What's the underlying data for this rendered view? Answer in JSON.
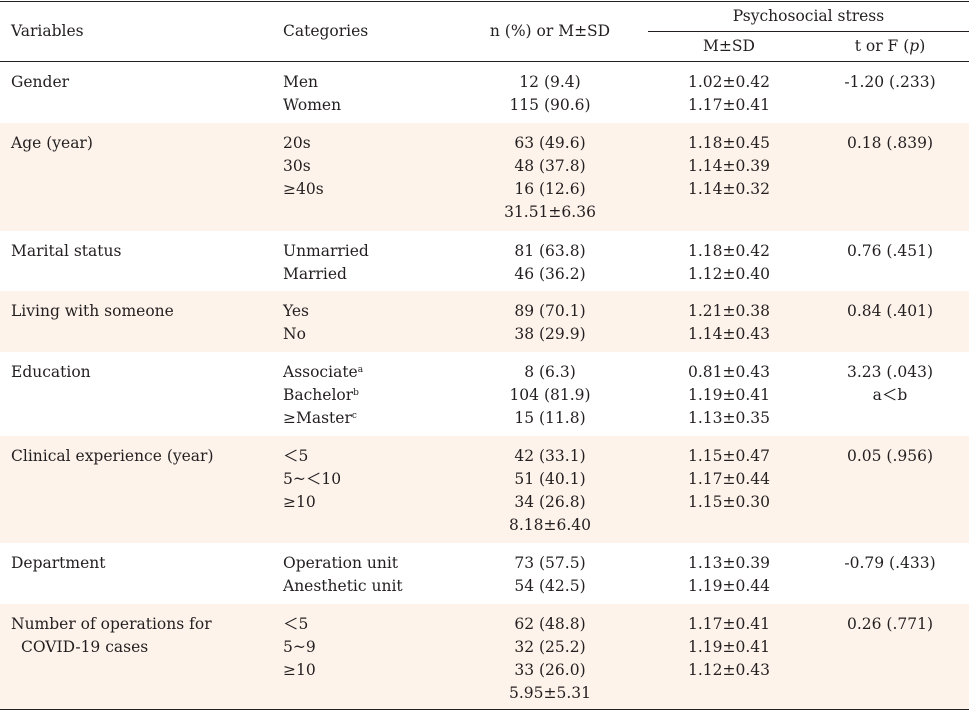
{
  "header": {
    "variables": "Variables",
    "categories": "Categories",
    "n_msd": "n (%) or M±SD",
    "psychosocial": "Psychosocial stress",
    "msd": "M±SD",
    "t_or_f_prefix": "t or F (",
    "t_or_f_p": "p",
    "t_or_f_suffix": ")"
  },
  "rows": [
    {
      "variable": [
        "Gender"
      ],
      "categories": [
        {
          "text": "Men"
        },
        {
          "text": "Women"
        }
      ],
      "n": [
        "12 (9.4)",
        "115 (90.6)"
      ],
      "msd": [
        "1.02±0.42",
        "1.17±0.41"
      ],
      "t": [
        "-1.20 (.233)"
      ]
    },
    {
      "variable": [
        "Age (year)"
      ],
      "categories": [
        {
          "text": "20s"
        },
        {
          "text": "30s"
        },
        {
          "text": "≥40s"
        }
      ],
      "n": [
        "63 (49.6)",
        "48 (37.8)",
        "16 (12.6)",
        "31.51±6.36"
      ],
      "msd": [
        "1.18±0.45",
        "1.14±0.39",
        "1.14±0.32"
      ],
      "t": [
        "0.18 (.839)"
      ]
    },
    {
      "variable": [
        "Marital status"
      ],
      "categories": [
        {
          "text": "Unmarried"
        },
        {
          "text": "Married"
        }
      ],
      "n": [
        "81 (63.8)",
        "46 (36.2)"
      ],
      "msd": [
        "1.18±0.42",
        "1.12±0.40"
      ],
      "t": [
        "0.76 (.451)"
      ]
    },
    {
      "variable": [
        "Living with someone"
      ],
      "categories": [
        {
          "text": "Yes"
        },
        {
          "text": "No"
        }
      ],
      "n": [
        "89 (70.1)",
        "38 (29.9)"
      ],
      "msd": [
        "1.21±0.38",
        "1.14±0.43"
      ],
      "t": [
        "0.84 (.401)"
      ]
    },
    {
      "variable": [
        "Education"
      ],
      "categories": [
        {
          "text": "Associate",
          "sup": "a"
        },
        {
          "text": "Bachelor",
          "sup": "b"
        },
        {
          "text": "≥Master",
          "sup": "c"
        }
      ],
      "n": [
        "8 (6.3)",
        "104 (81.9)",
        "15 (11.8)"
      ],
      "msd": [
        "0.81±0.43",
        "1.19±0.41",
        "1.13±0.35"
      ],
      "t": [
        "3.23 (.043)",
        "a＜b"
      ]
    },
    {
      "variable": [
        "Clinical experience (year)"
      ],
      "categories": [
        {
          "text": "＜5"
        },
        {
          "text": "5~＜10"
        },
        {
          "text": "≥10"
        }
      ],
      "n": [
        "42 (33.1)",
        "51 (40.1)",
        "34 (26.8)",
        "8.18±6.40"
      ],
      "msd": [
        "1.15±0.47",
        "1.17±0.44",
        "1.15±0.30"
      ],
      "t": [
        "0.05 (.956)"
      ]
    },
    {
      "variable": [
        "Department"
      ],
      "categories": [
        {
          "text": "Operation unit"
        },
        {
          "text": "Anesthetic unit"
        }
      ],
      "n": [
        "73 (57.5)",
        "54 (42.5)"
      ],
      "msd": [
        "1.13±0.39",
        "1.19±0.44"
      ],
      "t": [
        "-0.79 (.433)"
      ]
    },
    {
      "variable": [
        "Number of operations for",
        "COVID-19 cases"
      ],
      "categories": [
        {
          "text": "＜5"
        },
        {
          "text": "5~9"
        },
        {
          "text": "≥10"
        }
      ],
      "n": [
        "62 (48.8)",
        "32 (25.2)",
        "33 (26.0)",
        "5.95±5.31"
      ],
      "msd": [
        "1.17±0.41",
        "1.19±0.41",
        "1.12±0.43"
      ],
      "t": [
        "0.26 (.771)"
      ]
    }
  ]
}
